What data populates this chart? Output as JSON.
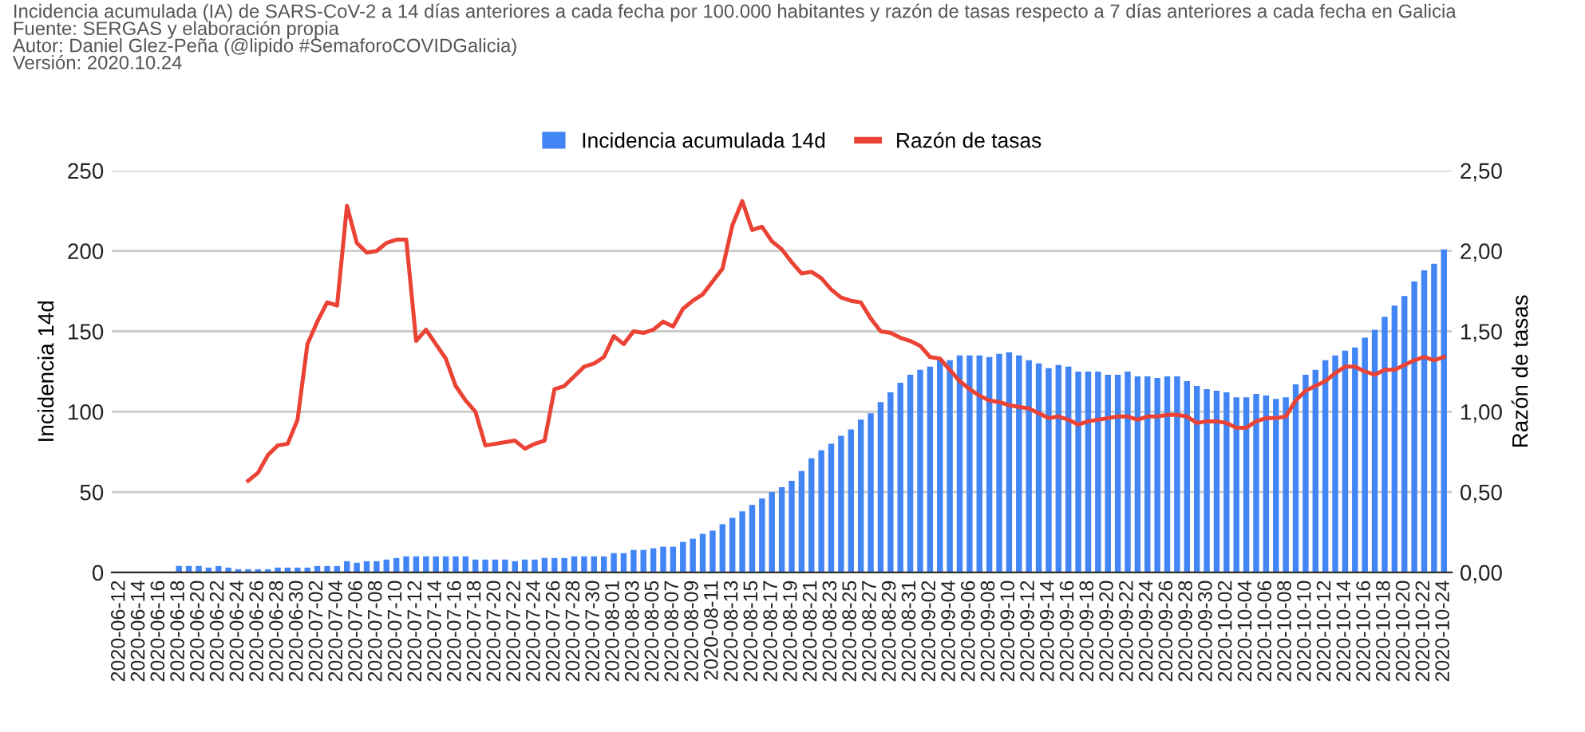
{
  "chart_data": {
    "type": "bar",
    "title": "Incidencia acumulada (IA) de SARS-CoV-2 a 14 días anteriores a cada fecha por 100.000 habitantes y razón de tasas respecto a 7 días anteriores a cada fecha en Galicia",
    "annotations": [
      "Fuente: SERGAS y elaboración propia",
      "Autor: Daniel Glez-Peña (@lipido #SemaforoCOVIDGalicia)",
      "Versión: 2020.10.24"
    ],
    "ylabel": "Incidencia 14d",
    "y2label": "Razón de tasas",
    "categories": [
      "2020-06-12",
      null,
      "2020-06-14",
      null,
      "2020-06-16",
      null,
      "2020-06-18",
      null,
      "2020-06-20",
      null,
      "2020-06-22",
      null,
      "2020-06-24",
      null,
      "2020-06-26",
      null,
      "2020-06-28",
      null,
      "2020-06-30",
      null,
      "2020-07-02",
      null,
      "2020-07-04",
      null,
      "2020-07-06",
      null,
      "2020-07-08",
      null,
      "2020-07-10",
      null,
      "2020-07-12",
      null,
      "2020-07-14",
      null,
      "2020-07-16",
      null,
      "2020-07-18",
      null,
      "2020-07-20",
      null,
      "2020-07-22",
      null,
      "2020-07-24",
      null,
      "2020-07-26",
      null,
      "2020-07-28",
      null,
      "2020-07-30",
      null,
      "2020-08-01",
      null,
      "2020-08-03",
      null,
      "2020-08-05",
      null,
      "2020-08-07",
      null,
      "2020-08-09",
      null,
      "2020-08-11",
      null,
      "2020-08-13",
      null,
      "2020-08-15",
      null,
      "2020-08-17",
      null,
      "2020-08-19",
      null,
      "2020-08-21",
      null,
      "2020-08-23",
      null,
      "2020-08-25",
      null,
      "2020-08-27",
      null,
      "2020-08-29",
      null,
      "2020-08-31",
      null,
      "2020-09-02",
      null,
      "2020-09-04",
      null,
      "2020-09-06",
      null,
      "2020-09-08",
      null,
      "2020-09-10",
      null,
      "2020-09-12",
      null,
      "2020-09-14",
      null,
      "2020-09-16",
      null,
      "2020-09-18",
      null,
      "2020-09-20",
      null,
      "2020-09-22",
      null,
      "2020-09-24",
      null,
      "2020-09-26",
      null,
      "2020-09-28",
      null,
      "2020-09-30",
      null,
      "2020-10-02",
      null,
      "2020-10-04",
      null,
      "2020-10-06",
      null,
      "2020-10-08",
      null,
      "2020-10-10",
      null,
      "2020-10-12",
      null,
      "2020-10-14",
      null,
      "2020-10-16",
      null,
      "2020-10-18",
      null,
      "2020-10-20",
      null,
      "2020-10-22",
      null,
      "2020-10-24"
    ],
    "series": [
      {
        "name": "Incidencia acumulada 14d",
        "color": "#4285f4",
        "values": [
          null,
          null,
          null,
          null,
          null,
          null,
          4,
          4,
          4,
          3,
          4,
          3,
          2,
          2,
          2,
          2,
          3,
          3,
          3,
          3,
          4,
          4,
          4,
          7,
          6,
          7,
          7,
          8,
          9,
          10,
          10,
          10,
          10,
          10,
          10,
          10,
          8,
          8,
          8,
          8,
          7,
          8,
          8,
          9,
          9,
          9,
          10,
          10,
          10,
          10,
          12,
          12,
          14,
          14,
          15,
          16,
          16,
          19,
          21,
          24,
          26,
          30,
          34,
          38,
          42,
          46,
          50,
          53,
          57,
          63,
          71,
          76,
          80,
          85,
          89,
          95,
          99,
          106,
          112,
          118,
          123,
          126,
          128,
          132,
          132,
          135,
          135,
          135,
          134,
          136,
          137,
          135,
          132,
          130,
          127,
          129,
          128,
          125,
          125,
          125,
          123,
          123,
          125,
          122,
          122,
          121,
          122,
          122,
          119,
          116,
          114,
          113,
          112,
          109,
          109,
          111,
          110,
          108,
          109,
          117,
          123,
          126,
          132,
          135,
          138,
          140,
          146,
          151,
          159,
          166,
          172,
          181,
          188,
          192,
          201
        ]
      },
      {
        "name": "Razón de tasas",
        "type": "line",
        "axis": "y2",
        "color": "#ea4335",
        "values": [
          null,
          null,
          null,
          null,
          null,
          null,
          null,
          null,
          null,
          null,
          null,
          null,
          null,
          0.57,
          0.62,
          0.73,
          0.79,
          0.8,
          0.95,
          1.42,
          1.56,
          1.68,
          1.66,
          2.28,
          2.05,
          1.99,
          2.0,
          2.05,
          2.07,
          2.07,
          1.44,
          1.51,
          1.42,
          1.33,
          1.16,
          1.07,
          1.0,
          0.79,
          0.8,
          0.81,
          0.82,
          0.77,
          0.8,
          0.82,
          1.14,
          1.16,
          1.22,
          1.28,
          1.3,
          1.34,
          1.47,
          1.42,
          1.5,
          1.49,
          1.51,
          1.56,
          1.53,
          1.64,
          1.69,
          1.73,
          1.81,
          1.89,
          2.16,
          2.31,
          2.13,
          2.15,
          2.06,
          2.01,
          1.93,
          1.86,
          1.87,
          1.83,
          1.76,
          1.71,
          1.69,
          1.68,
          1.58,
          1.5,
          1.49,
          1.46,
          1.44,
          1.41,
          1.34,
          1.33,
          1.26,
          1.19,
          1.14,
          1.1,
          1.07,
          1.06,
          1.04,
          1.03,
          1.02,
          0.99,
          0.96,
          0.97,
          0.95,
          0.92,
          0.94,
          0.95,
          0.96,
          0.97,
          0.97,
          0.95,
          0.97,
          0.97,
          0.98,
          0.98,
          0.97,
          0.93,
          0.94,
          0.94,
          0.93,
          0.9,
          0.9,
          0.94,
          0.96,
          0.96,
          0.97,
          1.07,
          1.13,
          1.16,
          1.19,
          1.24,
          1.28,
          1.28,
          1.25,
          1.23,
          1.26,
          1.26,
          1.29,
          1.32,
          1.34,
          1.32,
          1.34
        ]
      }
    ],
    "ylim": [
      0,
      250
    ],
    "yticks": [
      0,
      50,
      100,
      150,
      200,
      250
    ],
    "y2lim": [
      0,
      2.5
    ],
    "y2ticks": [
      {
        "value": 0,
        "label": "0,00"
      },
      {
        "value": 0.5,
        "label": "0,50"
      },
      {
        "value": 1,
        "label": "1,00"
      },
      {
        "value": 1.5,
        "label": "1,50"
      },
      {
        "value": 2,
        "label": "2,00"
      },
      {
        "value": 2.5,
        "label": "2,50"
      }
    ],
    "grid": "y",
    "legend": "top",
    "marker": "none",
    "line_style": "solid"
  }
}
